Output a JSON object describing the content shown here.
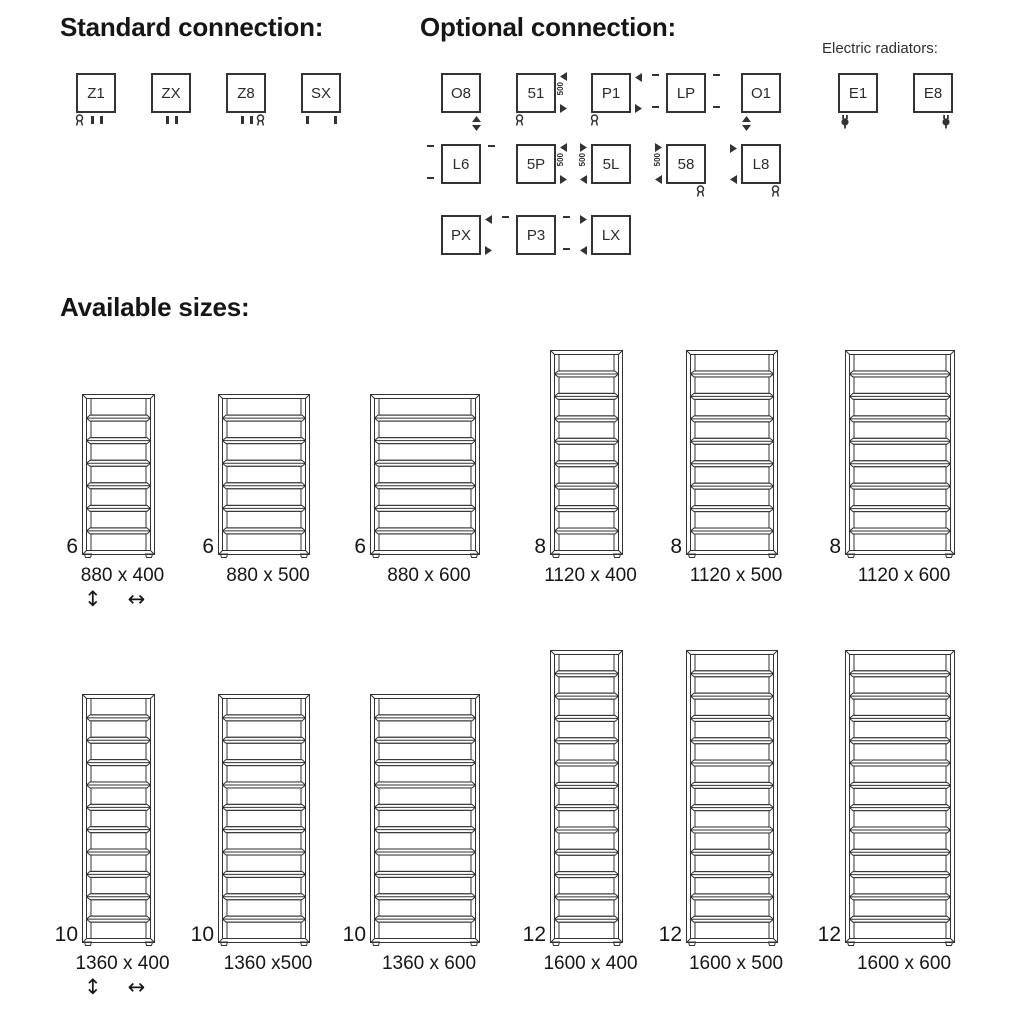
{
  "standard_connection": {
    "heading": "Standard connection:",
    "boxes": [
      {
        "code": "Z1",
        "marks": [
          "valve-bl",
          "ticks-center"
        ]
      },
      {
        "code": "ZX",
        "marks": [
          "ticks-center"
        ]
      },
      {
        "code": "Z8",
        "marks": [
          "ticks-center",
          "valve-br"
        ]
      },
      {
        "code": "SX",
        "marks": [
          "ticks-wide"
        ]
      }
    ]
  },
  "optional_connection": {
    "heading": "Optional connection:",
    "dim_label": "500",
    "rows": [
      {
        "boxes": [
          {
            "code": "O8",
            "marks": [
              "varrow-br"
            ]
          },
          {
            "code": "51",
            "marks": [
              "valve-bl",
              "dim500-right"
            ]
          },
          {
            "code": "P1",
            "marks": [
              "valve-bl",
              "arr-tr-left",
              "arr-br-right"
            ]
          },
          {
            "code": "LP",
            "marks": [
              "dash-tl",
              "dash-bl",
              "dash-tr",
              "dash-br"
            ]
          },
          {
            "code": "O1",
            "marks": [
              "varrow-bl"
            ]
          }
        ]
      },
      {
        "boxes": [
          {
            "code": "L6",
            "marks": [
              "dash-tl",
              "dash-bl",
              "dash-tr"
            ]
          },
          {
            "code": "5P",
            "marks": [
              "dim500-right"
            ]
          },
          {
            "code": "5L",
            "marks": [
              "dim500-left"
            ]
          },
          {
            "code": "58",
            "marks": [
              "dim500-left",
              "valve-br"
            ]
          },
          {
            "code": "L8",
            "marks": [
              "arr-tl-right",
              "arr-bl-left",
              "valve-br"
            ]
          }
        ]
      },
      {
        "boxes": [
          {
            "code": "PX",
            "marks": [
              "arr-tr-left",
              "arr-br-right"
            ]
          },
          {
            "code": "P3",
            "marks": [
              "dash-tl",
              "dash-tr",
              "dash-br"
            ]
          },
          {
            "code": "LX",
            "marks": [
              "arr-tl-right",
              "arr-bl-left"
            ]
          }
        ]
      }
    ]
  },
  "electric_radiators": {
    "heading": "Electric radiators:",
    "boxes": [
      {
        "code": "E1",
        "marks": [
          "plug-bl"
        ]
      },
      {
        "code": "E8",
        "marks": [
          "plug-br"
        ]
      }
    ]
  },
  "available_sizes": {
    "heading": "Available sizes:",
    "height_arrow": "↕",
    "width_arrow": "↔",
    "rows": [
      {
        "radiators": [
          {
            "count": "6",
            "size": "880 x 400",
            "height_mm": 880,
            "width_mm": 400,
            "bars": 6,
            "show_arrows": true
          },
          {
            "count": "6",
            "size": "880 x 500",
            "height_mm": 880,
            "width_mm": 500,
            "bars": 6
          },
          {
            "count": "6",
            "size": "880 x 600",
            "height_mm": 880,
            "width_mm": 600,
            "bars": 6
          },
          {
            "count": "8",
            "size": "1120 x 400",
            "height_mm": 1120,
            "width_mm": 400,
            "bars": 8
          },
          {
            "count": "8",
            "size": "1120 x 500",
            "height_mm": 1120,
            "width_mm": 500,
            "bars": 8
          },
          {
            "count": "8",
            "size": "1120 x 600",
            "height_mm": 1120,
            "width_mm": 600,
            "bars": 8
          }
        ]
      },
      {
        "radiators": [
          {
            "count": "10",
            "size": "1360 x 400",
            "height_mm": 1360,
            "width_mm": 400,
            "bars": 10,
            "show_arrows": true
          },
          {
            "count": "10",
            "size": "1360 x500",
            "height_mm": 1360,
            "width_mm": 500,
            "bars": 10
          },
          {
            "count": "10",
            "size": "1360 x 600",
            "height_mm": 1360,
            "width_mm": 600,
            "bars": 10
          },
          {
            "count": "12",
            "size": "1600 x 400",
            "height_mm": 1600,
            "width_mm": 400,
            "bars": 12
          },
          {
            "count": "12",
            "size": "1600 x 500",
            "height_mm": 1600,
            "width_mm": 500,
            "bars": 12
          },
          {
            "count": "12",
            "size": "1600 x 600",
            "height_mm": 1600,
            "width_mm": 600,
            "bars": 12
          }
        ]
      }
    ]
  }
}
